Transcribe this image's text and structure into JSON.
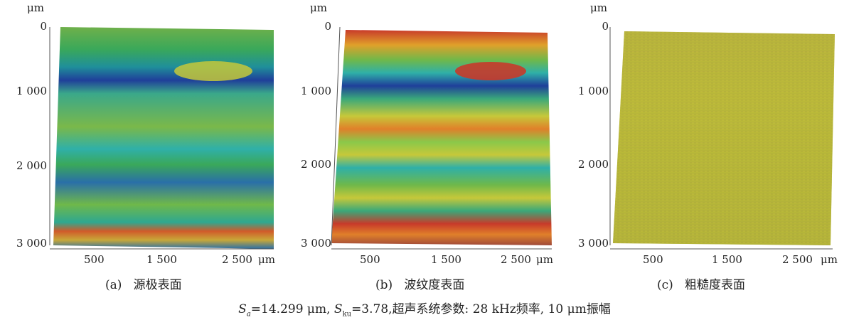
{
  "panels": [
    {
      "unit_top": "μm",
      "y_ticks": [
        "0",
        "1 000",
        "2 000",
        "3 000"
      ],
      "x_ticks": [
        "500",
        "1 500",
        "2 500"
      ],
      "x_unit": "μm",
      "caption_tag": "(a)",
      "caption_text": "源极表面"
    },
    {
      "unit_top": "μm",
      "y_ticks": [
        "0",
        "1 000",
        "2 000",
        "3 000"
      ],
      "x_ticks": [
        "500",
        "1 500",
        "2 500"
      ],
      "x_unit": "μm",
      "caption_tag": "(b)",
      "caption_text": "波纹度表面"
    },
    {
      "unit_top": "μm",
      "y_ticks": [
        "0",
        "1 000",
        "2 000",
        "3 000"
      ],
      "x_ticks": [
        "500",
        "1 500",
        "2 500"
      ],
      "x_unit": "μm",
      "caption_tag": "(c)",
      "caption_text": "粗糙度表面"
    }
  ],
  "footer": {
    "sa_symbol": "S",
    "sa_sub": "a",
    "sa_value": "=14.299 μm, ",
    "sku_symbol": "S",
    "sku_sub": "ku",
    "sku_value": "=3.78,",
    "params": "超声系统参数: 28 kHz频率, 10 μm振幅"
  },
  "colors": {
    "green": "#3aa85a",
    "teal": "#2fb0a8",
    "blue": "#1f3f9a",
    "yellow": "#c6c83a",
    "orange": "#e0802a",
    "red": "#c83a2a",
    "olive": "#b8b838"
  }
}
